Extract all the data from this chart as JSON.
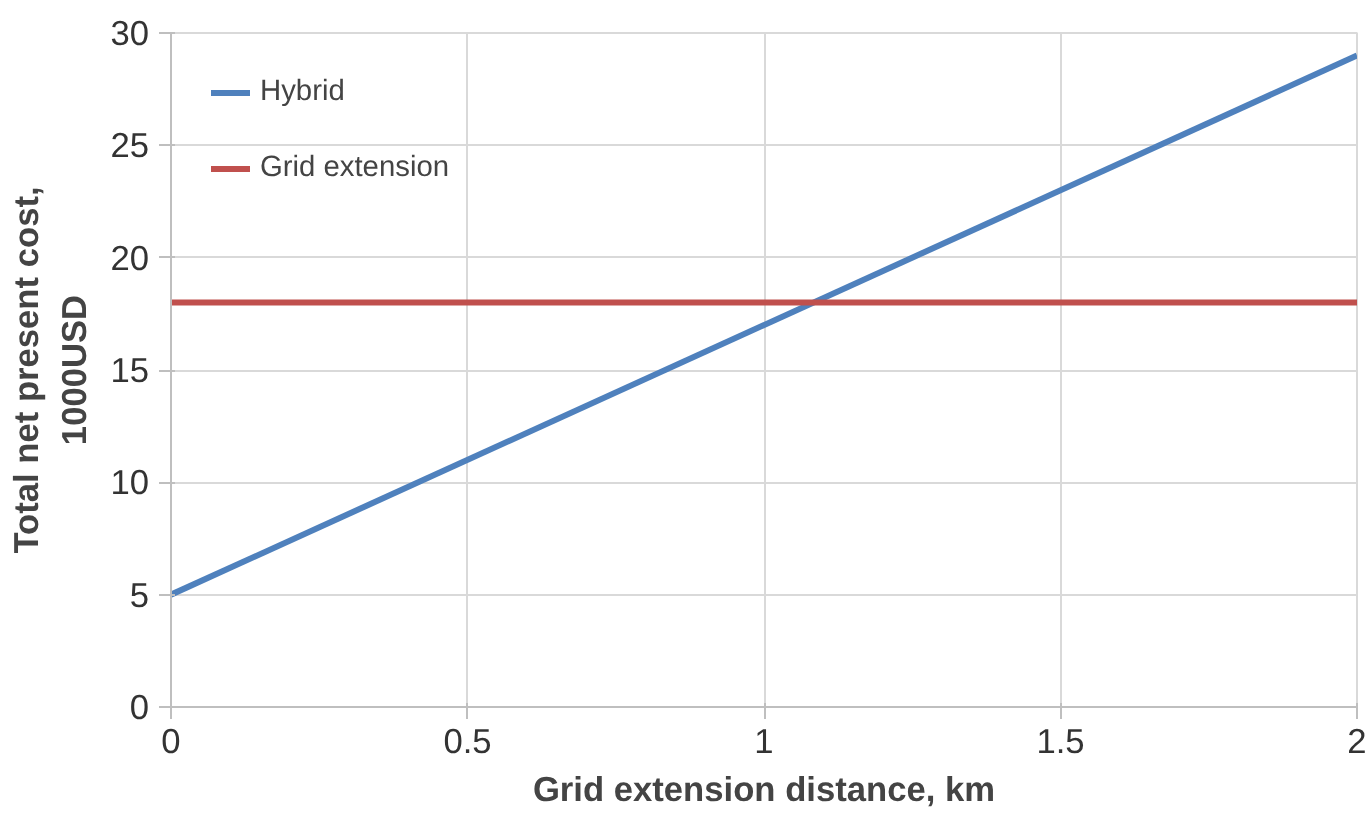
{
  "chart_data": {
    "type": "line",
    "xlabel": "Grid extension distance, km",
    "ylabel": "Total net present cost, 1000USD",
    "x": [
      0,
      2
    ],
    "series": [
      {
        "name": "Hybrid",
        "color": "#4f81bd",
        "values": [
          5,
          29
        ]
      },
      {
        "name": "Grid extension",
        "color": "#c0504d",
        "values": [
          18,
          18
        ]
      }
    ],
    "xlim": [
      0,
      2
    ],
    "xticks": [
      0,
      0.5,
      1,
      1.5,
      2
    ],
    "ylim": [
      0,
      30
    ],
    "yticks": [
      0,
      5,
      10,
      15,
      20,
      25,
      30
    ],
    "grid": true,
    "legend": "top left",
    "marker": "none",
    "line_style": "solid"
  }
}
